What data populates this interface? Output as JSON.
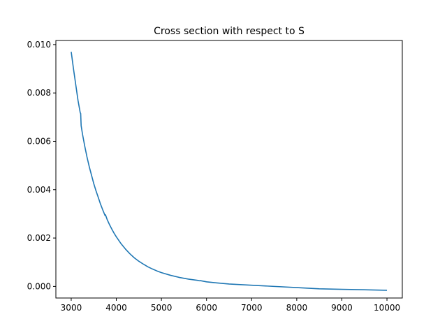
{
  "chart_data": {
    "type": "line",
    "title": "Cross section with respect to S",
    "xlabel": "",
    "ylabel": "",
    "xlim": [
      2660,
      10340
    ],
    "ylim": [
      -0.00048,
      0.01017
    ],
    "grid": false,
    "x_ticks": [
      3000,
      4000,
      5000,
      6000,
      7000,
      8000,
      9000,
      10000
    ],
    "x_tick_labels": [
      "3000",
      "4000",
      "5000",
      "6000",
      "7000",
      "8000",
      "9000",
      "10000"
    ],
    "y_ticks": [
      0.0,
      0.002,
      0.004,
      0.006,
      0.008,
      0.01
    ],
    "y_tick_labels": [
      "0.000",
      "0.002",
      "0.004",
      "0.006",
      "0.008",
      "0.010"
    ],
    "series": [
      {
        "color": "#1f77b4",
        "x": [
          3000,
          3050,
          3100,
          3150,
          3200,
          3210,
          3220,
          3250,
          3300,
          3350,
          3400,
          3450,
          3500,
          3550,
          3600,
          3650,
          3700,
          3750,
          3760,
          3800,
          3850,
          3900,
          3950,
          4000,
          4100,
          4200,
          4300,
          4400,
          4500,
          4600,
          4700,
          4800,
          4900,
          5000,
          5200,
          5400,
          5600,
          5800,
          5850,
          5860,
          6000,
          6200,
          6500,
          7000,
          7500,
          8000,
          8500,
          9000,
          9500,
          10000
        ],
        "y": [
          0.0097,
          0.009,
          0.00835,
          0.0077,
          0.00718,
          0.00715,
          0.00665,
          0.0063,
          0.0058,
          0.00535,
          0.00495,
          0.0046,
          0.00425,
          0.00395,
          0.00368,
          0.0034,
          0.00316,
          0.00293,
          0.00296,
          0.00275,
          0.00255,
          0.00237,
          0.0022,
          0.00205,
          0.00178,
          0.00155,
          0.00135,
          0.00118,
          0.00104,
          0.00092,
          0.00081,
          0.00072,
          0.00064,
          0.00057,
          0.00046,
          0.00037,
          0.0003,
          0.00025,
          0.00023,
          0.00024,
          0.00019,
          0.00015,
          0.0001,
          5e-05,
          0.0,
          -5e-05,
          -0.0001,
          -0.00012,
          -0.00014,
          -0.00016
        ]
      }
    ]
  }
}
